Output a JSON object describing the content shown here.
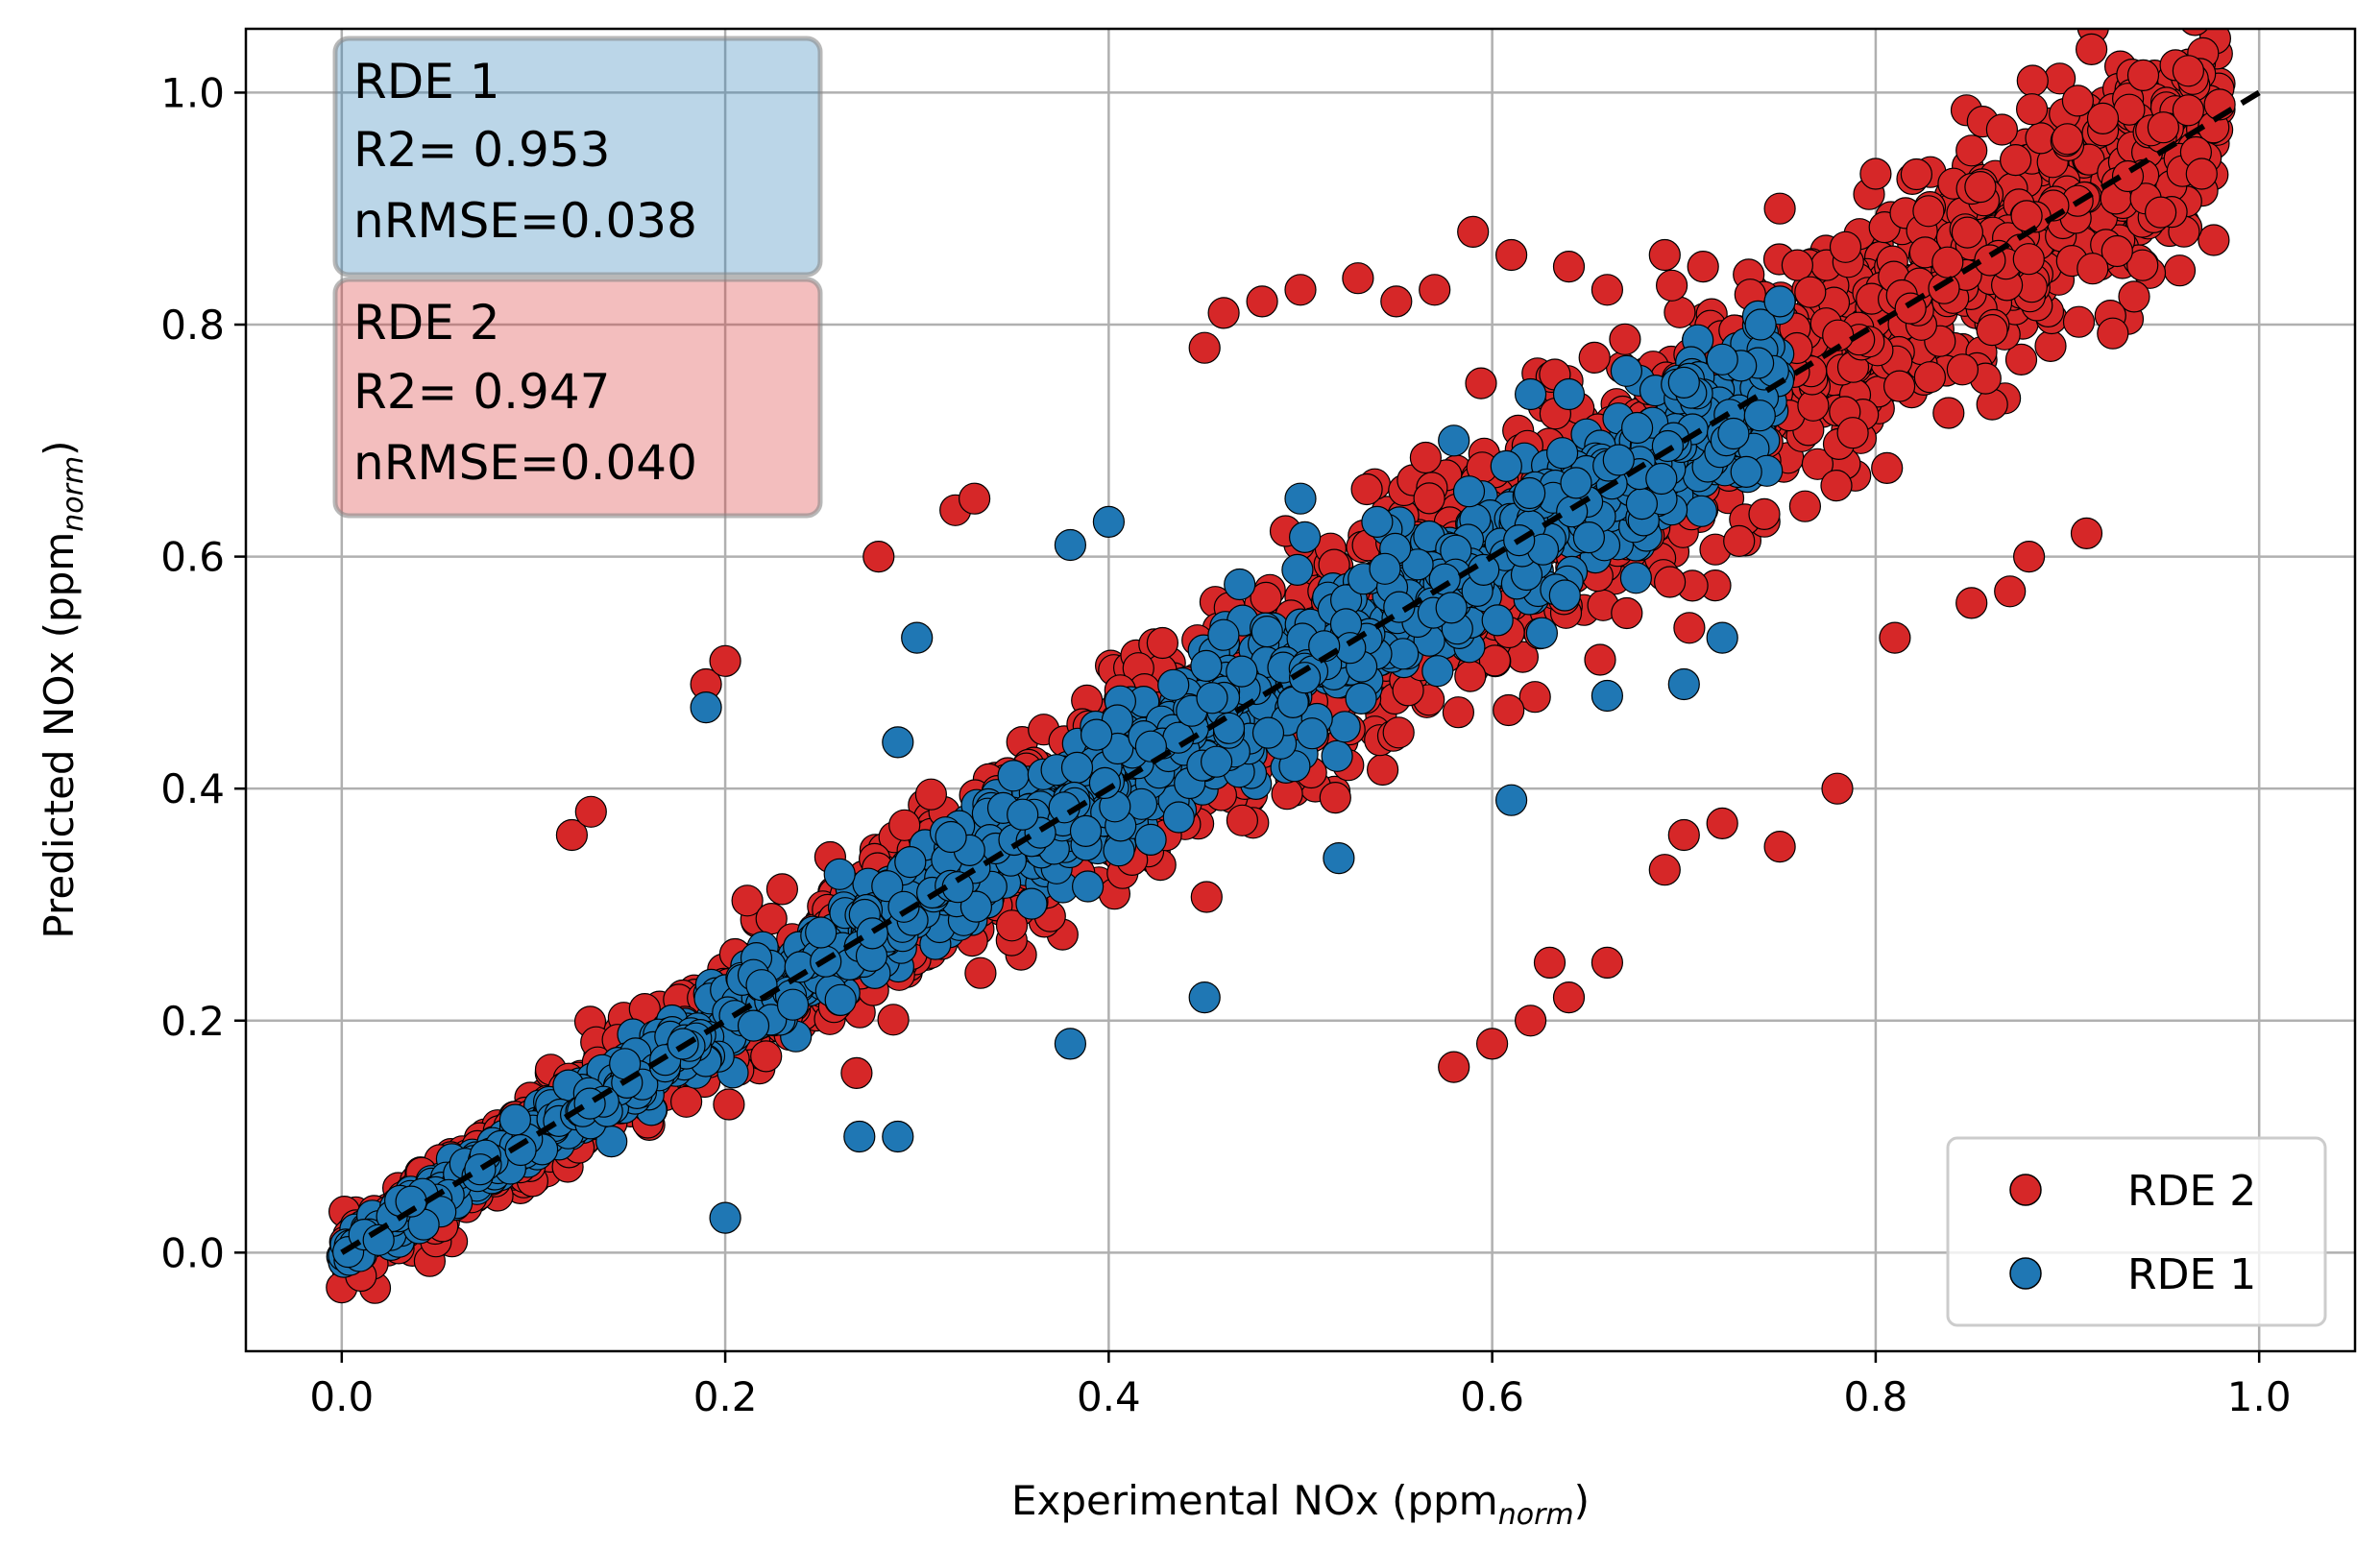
{
  "chart_data": {
    "type": "scatter",
    "title": "",
    "xlabel": {
      "main": "Experimental NOx (ppm",
      "sub": "norm",
      "close": ")"
    },
    "ylabel": {
      "main": "Predicted NOx (ppm",
      "sub": "norm",
      "close": ")"
    },
    "xlim": [
      -0.05,
      1.05
    ],
    "ylim": [
      -0.085,
      1.055
    ],
    "xticks": [
      0.0,
      0.2,
      0.4,
      0.6,
      0.8,
      1.0
    ],
    "yticks": [
      0.0,
      0.2,
      0.4,
      0.6,
      0.8,
      1.0
    ],
    "xtick_labels": [
      "0.0",
      "0.2",
      "0.4",
      "0.6",
      "0.8",
      "1.0"
    ],
    "ytick_labels": [
      "0.0",
      "0.2",
      "0.4",
      "0.6",
      "0.8",
      "1.0"
    ],
    "grid": true,
    "legend_position": "bottom-right",
    "reference_line": {
      "x": [
        0.0,
        1.0
      ],
      "y": [
        0.0,
        1.0
      ],
      "style": "dashed",
      "color": "#000000"
    },
    "series": [
      {
        "name": "RDE 2",
        "color": "#d62728",
        "stats": {
          "title": "RDE 2",
          "r2": "R2= 0.947",
          "nrmse": "nRMSE=0.040"
        },
        "x_range": [
          0.0,
          0.98
        ],
        "spread": 0.09,
        "outliers": [
          [
            0.19,
            0.49
          ],
          [
            0.2,
            0.51
          ],
          [
            0.12,
            0.36
          ],
          [
            0.13,
            0.38
          ],
          [
            0.28,
            0.6
          ],
          [
            0.32,
            0.64
          ],
          [
            0.33,
            0.65
          ],
          [
            0.45,
            0.78
          ],
          [
            0.46,
            0.81
          ],
          [
            0.48,
            0.82
          ],
          [
            0.5,
            0.83
          ],
          [
            0.53,
            0.84
          ],
          [
            0.55,
            0.82
          ],
          [
            0.57,
            0.83
          ],
          [
            0.59,
            0.88
          ],
          [
            0.61,
            0.86
          ],
          [
            0.64,
            0.85
          ],
          [
            0.66,
            0.83
          ],
          [
            0.69,
            0.86
          ],
          [
            0.71,
            0.85
          ],
          [
            0.75,
            0.9
          ],
          [
            0.8,
            0.93
          ],
          [
            0.85,
            0.95
          ],
          [
            0.9,
            0.96
          ],
          [
            0.95,
            0.97
          ],
          [
            0.97,
            0.93
          ],
          [
            0.58,
            0.16
          ],
          [
            0.6,
            0.18
          ],
          [
            0.62,
            0.2
          ],
          [
            0.63,
            0.25
          ],
          [
            0.64,
            0.22
          ],
          [
            0.66,
            0.25
          ],
          [
            0.69,
            0.33
          ],
          [
            0.7,
            0.36
          ],
          [
            0.72,
            0.37
          ],
          [
            0.75,
            0.35
          ],
          [
            0.78,
            0.4
          ],
          [
            0.81,
            0.53
          ],
          [
            0.85,
            0.56
          ],
          [
            0.87,
            0.57
          ],
          [
            0.88,
            0.6
          ],
          [
            0.91,
            0.62
          ],
          [
            0.0,
            -0.03
          ],
          [
            0.01,
            -0.02
          ],
          [
            0.02,
            0.03
          ],
          [
            0.03,
            0.01
          ]
        ]
      },
      {
        "name": "RDE 1",
        "color": "#1f77b4",
        "stats": {
          "title": "RDE 1",
          "r2": "R2= 0.953",
          "nrmse": "nRMSE=0.038"
        },
        "x_range": [
          0.0,
          0.75
        ],
        "spread": 0.055,
        "outliers": [
          [
            0.19,
            0.47
          ],
          [
            0.29,
            0.44
          ],
          [
            0.3,
            0.53
          ],
          [
            0.38,
            0.61
          ],
          [
            0.4,
            0.63
          ],
          [
            0.5,
            0.65
          ],
          [
            0.54,
            0.63
          ],
          [
            0.58,
            0.7
          ],
          [
            0.62,
            0.74
          ],
          [
            0.64,
            0.74
          ],
          [
            0.67,
            0.76
          ],
          [
            0.7,
            0.75
          ],
          [
            0.72,
            0.77
          ],
          [
            0.74,
            0.8
          ],
          [
            0.75,
            0.82
          ],
          [
            0.2,
            0.03
          ],
          [
            0.27,
            0.1
          ],
          [
            0.29,
            0.1
          ],
          [
            0.38,
            0.18
          ],
          [
            0.45,
            0.22
          ],
          [
            0.52,
            0.34
          ],
          [
            0.61,
            0.39
          ],
          [
            0.66,
            0.48
          ],
          [
            0.7,
            0.49
          ],
          [
            0.72,
            0.53
          ]
        ]
      }
    ]
  }
}
